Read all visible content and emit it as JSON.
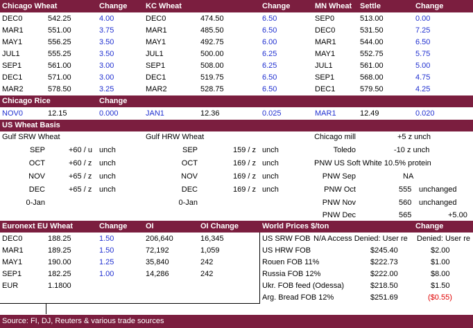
{
  "colors": {
    "band": "#7b1e3f",
    "change_blue": "#1f2fd0",
    "negative_red": "#e00000"
  },
  "futures_header": {
    "chicago_wheat": "Chicago Wheat",
    "change1": "Change",
    "kc_wheat": "KC Wheat",
    "change2": "Change",
    "mn_wheat": "MN Wheat",
    "settle": "Settle",
    "change3": "Change"
  },
  "chicago_wheat": [
    {
      "month": "DEC0",
      "price": "542.25",
      "change": "4.00"
    },
    {
      "month": "MAR1",
      "price": "551.00",
      "change": "3.75"
    },
    {
      "month": "MAY1",
      "price": "556.25",
      "change": "3.50"
    },
    {
      "month": "JUL1",
      "price": "555.25",
      "change": "3.50"
    },
    {
      "month": "SEP1",
      "price": "561.00",
      "change": "3.00"
    },
    {
      "month": "DEC1",
      "price": "571.00",
      "change": "3.00"
    },
    {
      "month": "MAR2",
      "price": "578.50",
      "change": "3.25"
    }
  ],
  "kc_wheat": [
    {
      "month": "DEC0",
      "price": "474.50",
      "change": "6.50"
    },
    {
      "month": "MAR1",
      "price": "485.50",
      "change": "6.50"
    },
    {
      "month": "MAY1",
      "price": "492.75",
      "change": "6.00"
    },
    {
      "month": "JUL1",
      "price": "500.00",
      "change": "6.25"
    },
    {
      "month": "SEP1",
      "price": "508.00",
      "change": "6.25"
    },
    {
      "month": "DEC1",
      "price": "519.75",
      "change": "6.50"
    },
    {
      "month": "MAR2",
      "price": "528.75",
      "change": "6.50"
    }
  ],
  "mn_wheat": [
    {
      "month": "SEP0",
      "price": "513.00",
      "change": "0.00"
    },
    {
      "month": "DEC0",
      "price": "531.50",
      "change": "7.25"
    },
    {
      "month": "MAR1",
      "price": "544.00",
      "change": "6.50"
    },
    {
      "month": "MAY1",
      "price": "552.75",
      "change": "5.75"
    },
    {
      "month": "JUL1",
      "price": "561.00",
      "change": "5.00"
    },
    {
      "month": "SEP1",
      "price": "568.00",
      "change": "4.75"
    },
    {
      "month": "DEC1",
      "price": "579.50",
      "change": "4.25"
    }
  ],
  "rice": {
    "title": "Chicago Rice",
    "change_label": "Change",
    "items": [
      {
        "month": "NOV0",
        "price": "12.15",
        "change": "0.000"
      },
      {
        "month": "JAN1",
        "price": "12.36",
        "change": "0.025"
      },
      {
        "month": "MAR1",
        "price": "12.49",
        "change": "0.020"
      }
    ]
  },
  "basis": {
    "title": "US Wheat Basis",
    "gulf_srw_title": "Gulf SRW Wheat",
    "gulf_hrw_title": "Gulf HRW Wheat",
    "srw": [
      {
        "month": "SEP",
        "value": "+60 / u",
        "chg": "unch"
      },
      {
        "month": "OCT",
        "value": "+60 / z",
        "chg": "unch"
      },
      {
        "month": "NOV",
        "value": "+65 / z",
        "chg": "unch"
      },
      {
        "month": "DEC",
        "value": "+65 / z",
        "chg": "unch"
      },
      {
        "month": "0-Jan",
        "value": "",
        "chg": ""
      }
    ],
    "hrw": [
      {
        "month": "SEP",
        "value": "159 / z",
        "chg": "unch"
      },
      {
        "month": "OCT",
        "value": "169 / z",
        "chg": "unch"
      },
      {
        "month": "NOV",
        "value": "169 / z",
        "chg": "unch"
      },
      {
        "month": "DEC",
        "value": "169 / z",
        "chg": "unch"
      },
      {
        "month": "0-Jan",
        "value": "",
        "chg": ""
      }
    ],
    "chicago_mill_label": "Chicago mill",
    "chicago_mill_value": "+5 z unch",
    "toledo_label": "Toledo",
    "toledo_value": "-10 z unch",
    "pnw_title": "PNW US Soft White 10.5% protein",
    "pnw": [
      {
        "label": "PNW Sep",
        "value": "NA",
        "chg": ""
      },
      {
        "label": "PNW Oct",
        "value": "555",
        "chg": "unchanged"
      },
      {
        "label": "PNW Nov",
        "value": "560",
        "chg": "unchanged"
      },
      {
        "label": "PNW Dec",
        "value": "565",
        "chg": "+5.00"
      }
    ]
  },
  "euronext": {
    "title": "Euronext EU Wheat",
    "change_label": "Change",
    "oi_label": "OI",
    "oi_change_label": "OI Change",
    "rows": [
      {
        "month": "DEC0",
        "price": "188.25",
        "change": "1.50",
        "oi": "206,640",
        "oi_change": "16,345"
      },
      {
        "month": "MAR1",
        "price": "189.25",
        "change": "1.50",
        "oi": "72,192",
        "oi_change": "1,059"
      },
      {
        "month": "MAY1",
        "price": "190.00",
        "change": "1.25",
        "oi": "35,840",
        "oi_change": "242"
      },
      {
        "month": "SEP1",
        "price": "182.25",
        "change": "1.00",
        "oi": "14,286",
        "oi_change": "242"
      }
    ],
    "eur_label": "EUR",
    "eur_value": "1.1800"
  },
  "world": {
    "title": "World Prices $/ton",
    "change_label": "Change",
    "first_row_label": "US SRW FOB",
    "first_row_value": "N/A Access Denied: User re",
    "first_row_value2": "Denied: User re",
    "rows": [
      {
        "label": "US HRW FOB",
        "price": "$245.40",
        "change": "$2.00",
        "negative": false
      },
      {
        "label": "Rouen FOB 11%",
        "price": "$222.73",
        "change": "$1.00",
        "negative": false
      },
      {
        "label": "Russia FOB 12%",
        "price": "$222.00",
        "change": "$8.00",
        "negative": false
      },
      {
        "label": "Ukr. FOB feed (Odessa)",
        "price": "$218.50",
        "change": "$1.50",
        "negative": false
      },
      {
        "label": "Arg. Bread FOB 12%",
        "price": "$251.69",
        "change": "($0.55)",
        "negative": true
      }
    ]
  },
  "footer": {
    "source": "Source: FI, DJ, Reuters & various trade sources"
  }
}
